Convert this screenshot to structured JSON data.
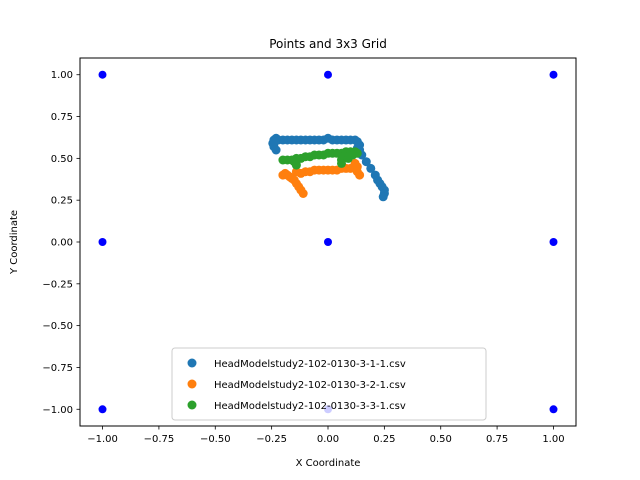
{
  "chart_data": {
    "type": "scatter",
    "title": "Points and 3x3 Grid",
    "xlabel": "X Coordinate",
    "ylabel": "Y Coordinate",
    "xlim": [
      -1.1,
      1.1
    ],
    "ylim": [
      -1.1,
      1.1
    ],
    "xticks": [
      -1.0,
      -0.75,
      -0.5,
      -0.25,
      0.0,
      0.25,
      0.5,
      0.75,
      1.0
    ],
    "xtick_labels": [
      "−1.00",
      "−0.75",
      "−0.50",
      "−0.25",
      "0.00",
      "0.25",
      "0.50",
      "0.75",
      "1.00"
    ],
    "yticks": [
      1.0,
      0.75,
      0.5,
      0.25,
      0.0,
      -0.25,
      -0.5,
      -0.75,
      -1.0
    ],
    "ytick_labels": [
      "1.00",
      "0.75",
      "0.50",
      "0.25",
      "0.00",
      "−0.25",
      "−0.50",
      "−0.75",
      "−1.00"
    ],
    "grid": false,
    "legend_position": "bottom-center",
    "grid_points": {
      "color": "#0000ff",
      "points": [
        [
          -1,
          1
        ],
        [
          0,
          1
        ],
        [
          1,
          1
        ],
        [
          -1,
          0
        ],
        [
          0,
          0
        ],
        [
          1,
          0
        ],
        [
          -1,
          -1
        ],
        [
          0,
          -1
        ],
        [
          1,
          -1
        ]
      ]
    },
    "series": [
      {
        "name": "HeadModelstudy2-102-0130-3-1-1.csv",
        "color": "#1f77b4",
        "points": [
          [
            -0.24,
            0.57
          ],
          [
            -0.245,
            0.59
          ],
          [
            -0.24,
            0.61
          ],
          [
            -0.23,
            0.62
          ],
          [
            -0.22,
            0.61
          ],
          [
            -0.2,
            0.61
          ],
          [
            -0.18,
            0.61
          ],
          [
            -0.16,
            0.61
          ],
          [
            -0.14,
            0.61
          ],
          [
            -0.12,
            0.61
          ],
          [
            -0.1,
            0.61
          ],
          [
            -0.08,
            0.61
          ],
          [
            -0.06,
            0.61
          ],
          [
            -0.04,
            0.61
          ],
          [
            -0.02,
            0.61
          ],
          [
            0.0,
            0.62
          ],
          [
            0.02,
            0.61
          ],
          [
            0.04,
            0.61
          ],
          [
            0.06,
            0.61
          ],
          [
            0.08,
            0.61
          ],
          [
            0.1,
            0.61
          ],
          [
            0.12,
            0.61
          ],
          [
            0.13,
            0.6
          ],
          [
            0.14,
            0.58
          ],
          [
            0.14,
            0.55
          ],
          [
            0.15,
            0.52
          ],
          [
            0.17,
            0.48
          ],
          [
            0.19,
            0.44
          ],
          [
            0.21,
            0.4
          ],
          [
            0.22,
            0.37
          ],
          [
            0.23,
            0.35
          ],
          [
            0.24,
            0.33
          ],
          [
            0.25,
            0.31
          ],
          [
            0.25,
            0.29
          ],
          [
            0.245,
            0.27
          ],
          [
            -0.23,
            0.55
          ],
          [
            -0.235,
            0.6
          ],
          [
            0.13,
            0.56
          ]
        ]
      },
      {
        "name": "HeadModelstudy2-102-0130-3-2-1.csv",
        "color": "#ff7f0e",
        "points": [
          [
            -0.2,
            0.4
          ],
          [
            -0.19,
            0.41
          ],
          [
            -0.18,
            0.4
          ],
          [
            -0.17,
            0.39
          ],
          [
            -0.16,
            0.38
          ],
          [
            -0.15,
            0.37
          ],
          [
            -0.14,
            0.35
          ],
          [
            -0.13,
            0.33
          ],
          [
            -0.12,
            0.31
          ],
          [
            -0.11,
            0.29
          ],
          [
            -0.1,
            0.42
          ],
          [
            -0.08,
            0.42
          ],
          [
            -0.06,
            0.43
          ],
          [
            -0.04,
            0.43
          ],
          [
            -0.02,
            0.43
          ],
          [
            0.0,
            0.43
          ],
          [
            0.02,
            0.43
          ],
          [
            0.04,
            0.43
          ],
          [
            0.06,
            0.44
          ],
          [
            0.08,
            0.44
          ],
          [
            0.1,
            0.44
          ],
          [
            0.12,
            0.44
          ],
          [
            0.12,
            0.47
          ],
          [
            0.13,
            0.45
          ],
          [
            0.13,
            0.42
          ],
          [
            0.14,
            0.4
          ],
          [
            -0.12,
            0.41
          ],
          [
            -0.14,
            0.42
          ]
        ]
      },
      {
        "name": "HeadModelstudy2-102-0130-3-3-1.csv",
        "color": "#2ca02c",
        "points": [
          [
            -0.2,
            0.49
          ],
          [
            -0.18,
            0.49
          ],
          [
            -0.16,
            0.49
          ],
          [
            -0.15,
            0.48
          ],
          [
            -0.14,
            0.46
          ],
          [
            -0.14,
            0.5
          ],
          [
            -0.12,
            0.5
          ],
          [
            -0.1,
            0.51
          ],
          [
            -0.08,
            0.51
          ],
          [
            -0.06,
            0.52
          ],
          [
            -0.04,
            0.52
          ],
          [
            -0.02,
            0.52
          ],
          [
            0.0,
            0.53
          ],
          [
            0.02,
            0.53
          ],
          [
            0.04,
            0.53
          ],
          [
            0.06,
            0.53
          ],
          [
            0.08,
            0.54
          ],
          [
            0.1,
            0.54
          ],
          [
            0.12,
            0.54
          ],
          [
            0.13,
            0.53
          ],
          [
            0.07,
            0.51
          ],
          [
            0.06,
            0.49
          ],
          [
            0.06,
            0.47
          ],
          [
            0.09,
            0.5
          ],
          [
            0.11,
            0.52
          ]
        ]
      }
    ]
  }
}
